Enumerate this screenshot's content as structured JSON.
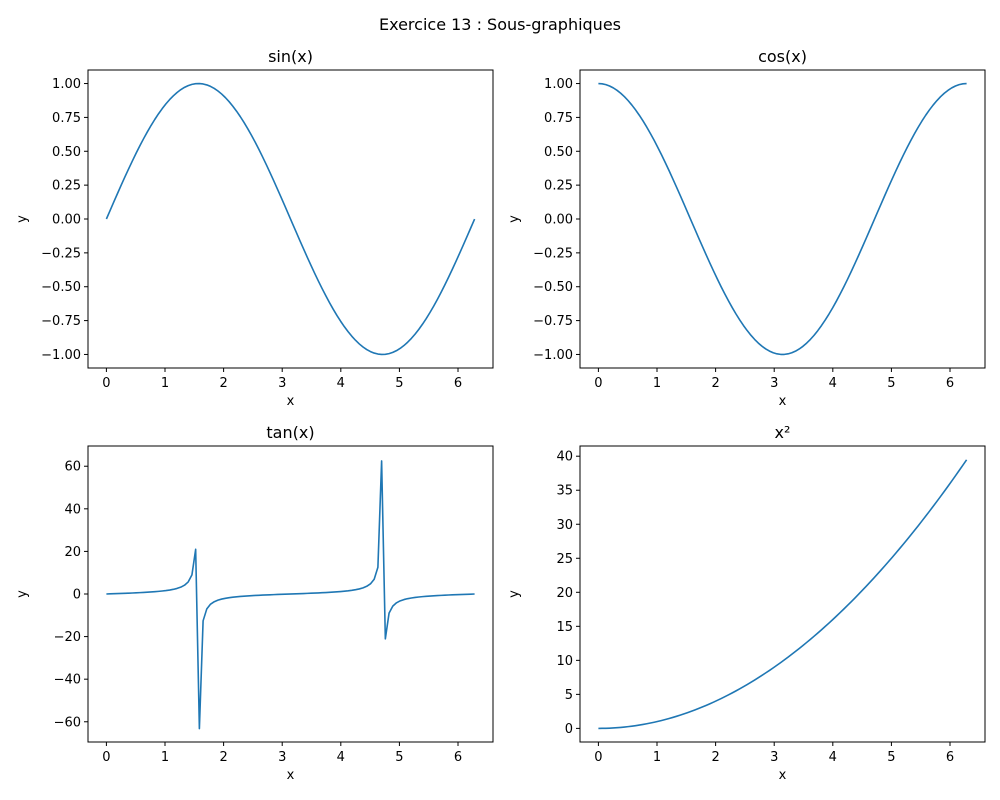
{
  "figure": {
    "suptitle": "Exercice 13 : Sous-graphiques"
  },
  "chart_data": [
    {
      "type": "line",
      "title": "sin(x)",
      "function": "sin",
      "xlabel": "x",
      "ylabel": "y",
      "x_range": [
        0,
        6.283
      ],
      "xlim": [
        -0.314,
        6.597
      ],
      "ylim": [
        -1.1,
        1.1
      ],
      "xticks": [
        0,
        1,
        2,
        3,
        4,
        5,
        6
      ],
      "yticks": [
        -1.0,
        -0.75,
        -0.5,
        -0.25,
        0.0,
        0.25,
        0.5,
        0.75,
        1.0
      ],
      "ytick_labels": [
        "−1.00",
        "−0.75",
        "−0.50",
        "−0.25",
        "0.00",
        "0.25",
        "0.50",
        "0.75",
        "1.00"
      ],
      "color": "#1f77b4"
    },
    {
      "type": "line",
      "title": "cos(x)",
      "function": "cos",
      "xlabel": "x",
      "ylabel": "y",
      "x_range": [
        0,
        6.283
      ],
      "xlim": [
        -0.314,
        6.597
      ],
      "ylim": [
        -1.1,
        1.1
      ],
      "xticks": [
        0,
        1,
        2,
        3,
        4,
        5,
        6
      ],
      "yticks": [
        -1.0,
        -0.75,
        -0.5,
        -0.25,
        0.0,
        0.25,
        0.5,
        0.75,
        1.0
      ],
      "ytick_labels": [
        "−1.00",
        "−0.75",
        "−0.50",
        "−0.25",
        "0.00",
        "0.25",
        "0.50",
        "0.75",
        "1.00"
      ],
      "color": "#1f77b4"
    },
    {
      "type": "line",
      "title": "tan(x)",
      "function": "tan",
      "xlabel": "x",
      "ylabel": "y",
      "x_range": [
        0,
        6.283
      ],
      "xlim": [
        -0.314,
        6.597
      ],
      "ylim": [
        -69.5,
        69.5
      ],
      "xticks": [
        0,
        1,
        2,
        3,
        4,
        5,
        6
      ],
      "yticks": [
        -60,
        -40,
        -20,
        0,
        20,
        40,
        60
      ],
      "ytick_labels": [
        "−60",
        "−40",
        "−20",
        "0",
        "20",
        "40",
        "60"
      ],
      "color": "#1f77b4"
    },
    {
      "type": "line",
      "title": "x²",
      "function": "square",
      "xlabel": "x",
      "ylabel": "y",
      "x_range": [
        0,
        6.283
      ],
      "xlim": [
        -0.314,
        6.597
      ],
      "ylim": [
        -2.0,
        41.5
      ],
      "xticks": [
        0,
        1,
        2,
        3,
        4,
        5,
        6
      ],
      "yticks": [
        0,
        5,
        10,
        15,
        20,
        25,
        30,
        35,
        40
      ],
      "ytick_labels": [
        "0",
        "5",
        "10",
        "15",
        "20",
        "25",
        "30",
        "35",
        "40"
      ],
      "color": "#1f77b4"
    }
  ]
}
